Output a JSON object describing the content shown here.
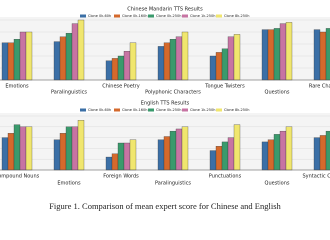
{
  "chart_data": [
    {
      "type": "bar",
      "title": "Chinese Mandarin TTS Results",
      "categories": [
        "Emotions",
        "Paralinguistics",
        "Chinese Poetry",
        "Polyphonic Characters",
        "Tongue Twisters",
        "Questions",
        "Rare Characters"
      ],
      "series": [
        {
          "name": "Clone 0k-60h",
          "color": "#3b6fa6",
          "values": [
            3.1,
            3.2,
            1.6,
            2.8,
            2.0,
            4.2,
            4.2
          ]
        },
        {
          "name": "Clone 0k-160h",
          "color": "#d4692c",
          "values": [
            3.1,
            3.6,
            1.8,
            3.1,
            2.3,
            4.2,
            4.0
          ]
        },
        {
          "name": "Clone 0k-250h",
          "color": "#3a9a6c",
          "values": [
            3.4,
            3.9,
            2.0,
            3.4,
            2.6,
            4.3,
            4.3
          ]
        },
        {
          "name": "Clone 1k-250h",
          "color": "#c774a3",
          "values": [
            4.0,
            4.7,
            2.4,
            3.6,
            3.6,
            4.7,
            4.6
          ]
        },
        {
          "name": "Clone 8k-250h",
          "color": "#f0e66e",
          "values": [
            4.0,
            5.0,
            3.1,
            4.0,
            3.8,
            4.8,
            4.8
          ]
        }
      ],
      "ylim": [
        0,
        5
      ],
      "grid": true
    },
    {
      "type": "bar",
      "title": "English TTS Results",
      "categories": [
        "Compound Nouns",
        "Emotions",
        "Foreign Words",
        "Paralinguistics",
        "Punctuations",
        "Questions",
        "Syntactic Complexity"
      ],
      "series": [
        {
          "name": "Clone 0k-60h",
          "color": "#3b6fa6",
          "values": [
            3.0,
            2.8,
            1.2,
            2.8,
            1.8,
            2.6,
            3.0
          ]
        },
        {
          "name": "Clone 0k-160h",
          "color": "#d4692c",
          "values": [
            3.4,
            3.4,
            1.5,
            3.1,
            2.2,
            2.8,
            3.2
          ]
        },
        {
          "name": "Clone 0k-250h",
          "color": "#3a9a6c",
          "values": [
            4.2,
            4.0,
            2.5,
            3.6,
            2.6,
            3.3,
            3.6
          ]
        },
        {
          "name": "Clone 1k-250h",
          "color": "#c774a3",
          "values": [
            4.0,
            4.0,
            2.5,
            3.8,
            3.0,
            3.6,
            3.8
          ]
        },
        {
          "name": "Clone 8k-250h",
          "color": "#f0e66e",
          "values": [
            4.0,
            4.6,
            2.8,
            4.0,
            4.2,
            4.0,
            4.2
          ]
        }
      ],
      "ylim": [
        0,
        5
      ],
      "grid": true
    }
  ],
  "caption": "Figure 1. Comparison of mean expert score for Chinese and English"
}
